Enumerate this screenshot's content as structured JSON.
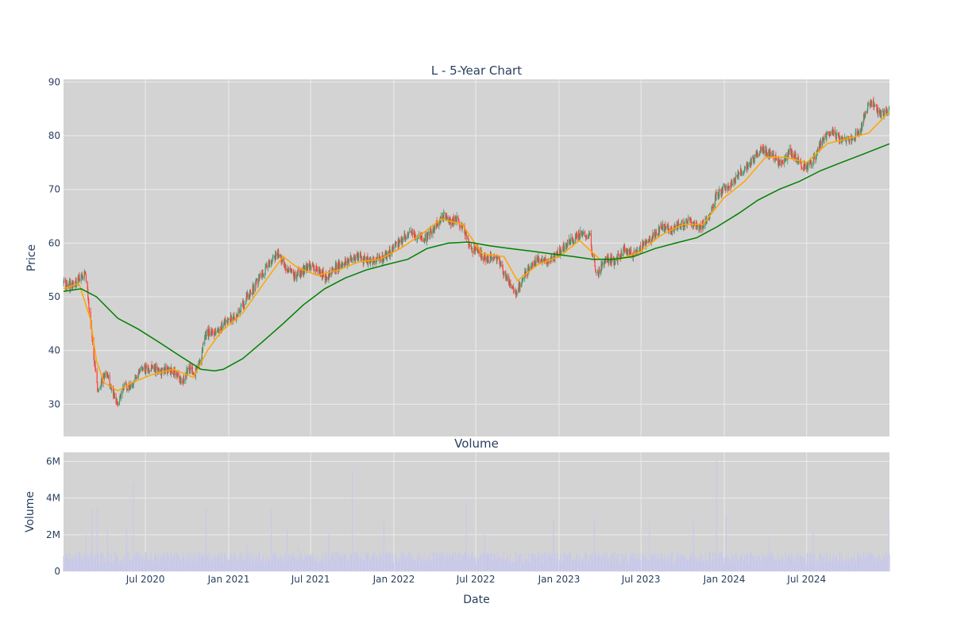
{
  "chart_data": [
    {
      "type": "candlestick",
      "title": "L - 5-Year Chart",
      "xlabel": "",
      "ylabel": "Price",
      "ylim": [
        24,
        90.5
      ],
      "yticks": [
        30,
        40,
        50,
        60,
        70,
        80,
        90
      ],
      "xlim": [
        "2020-01-02",
        "2024-12-31"
      ],
      "grid": true,
      "legend": "none",
      "colors": {
        "increasing": "#3d9970",
        "decreasing": "#ff4136",
        "ma_short": "#ffa500",
        "ma_long": "#008000",
        "plot_bg": "#d3d3d3"
      },
      "series": [
        {
          "kind": "close",
          "x": [
            "2020-01-02",
            "2020-01-20",
            "2020-02-05",
            "2020-02-20",
            "2020-03-01",
            "2020-03-10",
            "2020-03-18",
            "2020-03-25",
            "2020-04-05",
            "2020-04-15",
            "2020-05-01",
            "2020-05-13",
            "2020-05-25",
            "2020-06-05",
            "2020-06-15",
            "2020-07-01",
            "2020-07-15",
            "2020-08-01",
            "2020-08-20",
            "2020-09-05",
            "2020-09-20",
            "2020-10-05",
            "2020-10-20",
            "2020-11-01",
            "2020-11-08",
            "2020-11-20",
            "2020-12-05",
            "2020-12-20",
            "2021-01-10",
            "2021-02-01",
            "2021-02-20",
            "2021-03-10",
            "2021-04-01",
            "2021-04-20",
            "2021-05-10",
            "2021-05-25",
            "2021-06-10",
            "2021-06-25",
            "2021-07-15",
            "2021-08-05",
            "2021-08-25",
            "2021-09-15",
            "2021-10-05",
            "2021-10-25",
            "2021-11-15",
            "2021-12-05",
            "2021-12-25",
            "2022-01-15",
            "2022-02-05",
            "2022-02-25",
            "2022-03-15",
            "2022-04-05",
            "2022-04-20",
            "2022-05-05",
            "2022-05-20",
            "2022-06-05",
            "2022-06-20",
            "2022-07-05",
            "2022-07-25",
            "2022-08-15",
            "2022-09-05",
            "2022-09-25",
            "2022-10-10",
            "2022-10-25",
            "2022-11-15",
            "2022-12-05",
            "2022-12-25",
            "2023-01-15",
            "2023-02-05",
            "2023-02-25",
            "2023-03-10",
            "2023-03-25",
            "2023-04-15",
            "2023-05-05",
            "2023-05-25",
            "2023-06-15",
            "2023-07-05",
            "2023-07-25",
            "2023-08-15",
            "2023-09-05",
            "2023-09-25",
            "2023-10-15",
            "2023-11-05",
            "2023-11-25",
            "2023-12-15",
            "2024-01-05",
            "2024-01-25",
            "2024-02-15",
            "2024-03-05",
            "2024-03-25",
            "2024-04-15",
            "2024-05-05",
            "2024-05-25",
            "2024-06-15",
            "2024-07-01",
            "2024-07-15",
            "2024-08-05",
            "2024-08-25",
            "2024-09-15",
            "2024-10-05",
            "2024-10-25",
            "2024-11-10",
            "2024-11-25",
            "2024-12-10",
            "2024-12-31"
          ],
          "y": [
            52.5,
            52.0,
            53.5,
            54.0,
            46.0,
            38.0,
            32.0,
            34.0,
            36.0,
            33.5,
            30.0,
            33.5,
            33.0,
            34.0,
            36.0,
            36.5,
            37.0,
            36.0,
            36.5,
            35.5,
            34.5,
            36.5,
            36.0,
            38.0,
            43.0,
            43.5,
            43.5,
            45.0,
            46.0,
            48.5,
            51.0,
            53.5,
            56.5,
            58.0,
            55.0,
            54.0,
            54.5,
            55.5,
            55.0,
            53.5,
            55.5,
            56.5,
            57.5,
            57.0,
            56.5,
            57.0,
            58.5,
            60.5,
            62.0,
            61.0,
            61.0,
            63.5,
            65.0,
            64.0,
            64.5,
            62.5,
            59.0,
            58.5,
            57.0,
            57.5,
            54.0,
            50.5,
            53.0,
            55.0,
            57.0,
            56.5,
            57.5,
            59.5,
            61.0,
            62.0,
            61.0,
            54.0,
            57.0,
            56.5,
            59.0,
            58.0,
            59.5,
            61.0,
            63.0,
            62.5,
            63.5,
            64.0,
            63.0,
            64.0,
            69.0,
            70.5,
            72.0,
            74.0,
            75.5,
            77.5,
            76.5,
            74.5,
            77.0,
            75.0,
            74.0,
            75.5,
            79.0,
            81.0,
            79.0,
            79.0,
            80.5,
            85.0,
            86.5,
            84.0,
            84.5
          ]
        },
        {
          "kind": "moving_average_short",
          "x": [
            "2020-01-02",
            "2020-02-05",
            "2020-03-01",
            "2020-03-15",
            "2020-04-01",
            "2020-05-01",
            "2020-06-01",
            "2020-07-15",
            "2020-09-01",
            "2020-10-15",
            "2020-11-15",
            "2020-12-15",
            "2021-02-01",
            "2021-03-15",
            "2021-05-01",
            "2021-06-01",
            "2021-07-15",
            "2021-09-01",
            "2021-10-15",
            "2021-12-01",
            "2022-01-15",
            "2022-03-01",
            "2022-04-15",
            "2022-06-01",
            "2022-07-15",
            "2022-09-01",
            "2022-10-01",
            "2022-11-15",
            "2023-01-01",
            "2023-02-15",
            "2023-04-01",
            "2023-05-15",
            "2023-07-01",
            "2023-08-15",
            "2023-10-01",
            "2023-11-15",
            "2024-01-01",
            "2024-02-15",
            "2024-04-01",
            "2024-05-15",
            "2024-07-01",
            "2024-08-15",
            "2024-10-01",
            "2024-11-15",
            "2024-12-31"
          ],
          "y": [
            51.5,
            52.5,
            46.0,
            38.0,
            34.0,
            32.5,
            34.0,
            35.5,
            36.5,
            35.0,
            40.0,
            43.5,
            47.0,
            52.0,
            57.5,
            55.5,
            54.0,
            55.0,
            56.5,
            57.0,
            59.0,
            61.5,
            64.5,
            63.5,
            58.0,
            57.5,
            53.0,
            56.0,
            57.5,
            60.5,
            57.0,
            57.0,
            58.5,
            61.5,
            63.5,
            63.5,
            68.5,
            71.5,
            76.0,
            76.0,
            75.0,
            78.5,
            79.5,
            80.5,
            84.5
          ]
        },
        {
          "kind": "moving_average_long",
          "x": [
            "2020-01-02",
            "2020-02-10",
            "2020-03-15",
            "2020-05-01",
            "2020-06-15",
            "2020-08-01",
            "2020-09-15",
            "2020-11-01",
            "2020-12-01",
            "2020-12-20",
            "2021-02-01",
            "2021-03-15",
            "2021-05-01",
            "2021-06-15",
            "2021-08-01",
            "2021-09-15",
            "2021-11-01",
            "2021-12-15",
            "2022-02-01",
            "2022-03-15",
            "2022-05-01",
            "2022-06-15",
            "2022-08-01",
            "2022-09-15",
            "2022-11-01",
            "2022-12-15",
            "2023-02-01",
            "2023-03-15",
            "2023-05-01",
            "2023-06-15",
            "2023-08-01",
            "2023-09-15",
            "2023-11-01",
            "2023-12-15",
            "2024-02-01",
            "2024-03-15",
            "2024-05-01",
            "2024-06-15",
            "2024-08-01",
            "2024-09-15",
            "2024-11-01",
            "2024-12-31"
          ],
          "y": [
            51.0,
            51.5,
            50.0,
            46.0,
            44.0,
            41.5,
            39.0,
            36.5,
            36.2,
            36.5,
            38.5,
            41.5,
            45.0,
            48.5,
            51.5,
            53.5,
            55.0,
            56.0,
            57.0,
            59.0,
            60.0,
            60.2,
            59.5,
            59.0,
            58.5,
            58.0,
            57.5,
            57.0,
            57.0,
            57.5,
            59.0,
            60.0,
            61.0,
            63.0,
            65.5,
            68.0,
            70.0,
            71.5,
            73.5,
            75.0,
            76.5,
            78.5
          ]
        }
      ]
    },
    {
      "type": "bar",
      "title": "Volume",
      "xlabel": "Date",
      "ylabel": "Volume",
      "ylim": [
        0,
        6500000
      ],
      "yticks": [
        0,
        2000000,
        4000000,
        6000000
      ],
      "ytick_labels": [
        "0",
        "2M",
        "4M",
        "6M"
      ],
      "xtick_dates": [
        "2020-07-01",
        "2021-01-01",
        "2021-07-01",
        "2022-01-01",
        "2022-07-01",
        "2023-01-01",
        "2023-07-01",
        "2024-01-01",
        "2024-07-01"
      ],
      "xtick_labels": [
        "Jul 2020",
        "Jan 2021",
        "Jul 2021",
        "Jan 2022",
        "Jul 2022",
        "Jan 2023",
        "Jul 2023",
        "Jan 2024",
        "Jul 2024"
      ],
      "grid": true,
      "colors": {
        "bars": "#c8c8ec"
      },
      "base_volume": 900000,
      "spikes": [
        {
          "x": "2020-02-20",
          "value": 2000000
        },
        {
          "x": "2020-03-05",
          "value": 3400000
        },
        {
          "x": "2020-03-16",
          "value": 3500000
        },
        {
          "x": "2020-04-08",
          "value": 2300000
        },
        {
          "x": "2020-04-25",
          "value": 4000000
        },
        {
          "x": "2020-05-20",
          "value": 2400000
        },
        {
          "x": "2020-06-05",
          "value": 4800000
        },
        {
          "x": "2020-09-20",
          "value": 2400000
        },
        {
          "x": "2020-11-12",
          "value": 3500000
        },
        {
          "x": "2020-12-12",
          "value": 3600000
        },
        {
          "x": "2021-02-10",
          "value": 1500000
        },
        {
          "x": "2021-03-20",
          "value": 1900000
        },
        {
          "x": "2021-04-05",
          "value": 3400000
        },
        {
          "x": "2021-05-10",
          "value": 2400000
        },
        {
          "x": "2021-06-05",
          "value": 2400000
        },
        {
          "x": "2021-08-10",
          "value": 2100000
        },
        {
          "x": "2021-10-01",
          "value": 5500000
        },
        {
          "x": "2021-12-10",
          "value": 2800000
        },
        {
          "x": "2022-04-10",
          "value": 2700000
        },
        {
          "x": "2022-06-10",
          "value": 3700000
        },
        {
          "x": "2022-07-20",
          "value": 2000000
        },
        {
          "x": "2022-09-25",
          "value": 2700000
        },
        {
          "x": "2022-12-20",
          "value": 2800000
        },
        {
          "x": "2023-01-15",
          "value": 2800000
        },
        {
          "x": "2023-03-20",
          "value": 2800000
        },
        {
          "x": "2023-06-10",
          "value": 3100000
        },
        {
          "x": "2023-07-20",
          "value": 2800000
        },
        {
          "x": "2023-10-25",
          "value": 2800000
        },
        {
          "x": "2023-12-15",
          "value": 6100000
        },
        {
          "x": "2024-01-05",
          "value": 3100000
        },
        {
          "x": "2024-04-10",
          "value": 1900000
        },
        {
          "x": "2024-07-15",
          "value": 2200000
        },
        {
          "x": "2024-12-30",
          "value": 2800000
        }
      ]
    }
  ]
}
